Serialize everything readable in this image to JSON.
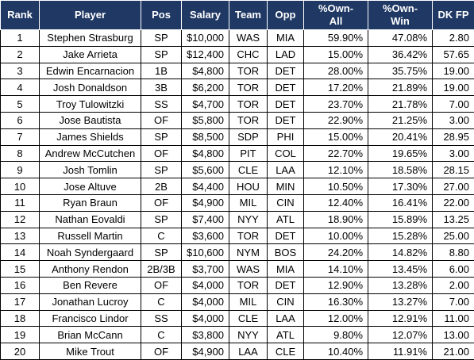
{
  "table": {
    "headers": [
      "Rank",
      "Player",
      "Pos",
      "Salary",
      "Team",
      "Opp",
      "%Own-\nAll",
      "%Own-\nWin",
      "DK FP"
    ],
    "rows": [
      [
        "1",
        "Stephen Strasburg",
        "SP",
        "$10,000",
        "WAS",
        "MIA",
        "59.90%",
        "47.08%",
        "2.80"
      ],
      [
        "2",
        "Jake Arrieta",
        "SP",
        "$12,400",
        "CHC",
        "LAD",
        "15.00%",
        "36.42%",
        "57.65"
      ],
      [
        "3",
        "Edwin Encarnacion",
        "1B",
        "$4,800",
        "TOR",
        "DET",
        "28.00%",
        "35.75%",
        "19.00"
      ],
      [
        "4",
        "Josh Donaldson",
        "3B",
        "$6,200",
        "TOR",
        "DET",
        "17.20%",
        "21.89%",
        "19.00"
      ],
      [
        "5",
        "Troy Tulowitzki",
        "SS",
        "$4,700",
        "TOR",
        "DET",
        "23.70%",
        "21.78%",
        "7.00"
      ],
      [
        "6",
        "Jose Bautista",
        "OF",
        "$5,800",
        "TOR",
        "DET",
        "22.90%",
        "21.25%",
        "3.00"
      ],
      [
        "7",
        "James Shields",
        "SP",
        "$8,500",
        "SDP",
        "PHI",
        "15.00%",
        "20.41%",
        "28.95"
      ],
      [
        "8",
        "Andrew McCutchen",
        "OF",
        "$4,800",
        "PIT",
        "COL",
        "22.70%",
        "19.65%",
        "3.00"
      ],
      [
        "9",
        "Josh Tomlin",
        "SP",
        "$5,600",
        "CLE",
        "LAA",
        "12.10%",
        "18.58%",
        "28.15"
      ],
      [
        "10",
        "Jose Altuve",
        "2B",
        "$4,400",
        "HOU",
        "MIN",
        "10.50%",
        "17.30%",
        "27.00"
      ],
      [
        "11",
        "Ryan Braun",
        "OF",
        "$4,900",
        "MIL",
        "CIN",
        "12.40%",
        "16.41%",
        "22.00"
      ],
      [
        "12",
        "Nathan Eovaldi",
        "SP",
        "$7,400",
        "NYY",
        "ATL",
        "18.90%",
        "15.89%",
        "13.25"
      ],
      [
        "13",
        "Russell Martin",
        "C",
        "$3,600",
        "TOR",
        "DET",
        "10.00%",
        "15.28%",
        "25.00"
      ],
      [
        "14",
        "Noah Syndergaard",
        "SP",
        "$10,600",
        "NYM",
        "BOS",
        "24.20%",
        "14.82%",
        "8.80"
      ],
      [
        "15",
        "Anthony Rendon",
        "2B/3B",
        "$3,700",
        "WAS",
        "MIA",
        "14.10%",
        "13.45%",
        "6.00"
      ],
      [
        "16",
        "Ben Revere",
        "OF",
        "$4,000",
        "TOR",
        "DET",
        "12.90%",
        "13.28%",
        "2.00"
      ],
      [
        "17",
        "Jonathan Lucroy",
        "C",
        "$4,000",
        "MIL",
        "CIN",
        "16.30%",
        "13.27%",
        "7.00"
      ],
      [
        "18",
        "Francisco Lindor",
        "SS",
        "$4,000",
        "CLE",
        "LAA",
        "12.00%",
        "12.91%",
        "11.00"
      ],
      [
        "19",
        "Brian McCann",
        "C",
        "$3,800",
        "NYY",
        "ATL",
        "9.80%",
        "12.07%",
        "13.00"
      ],
      [
        "20",
        "Mike Trout",
        "OF",
        "$4,900",
        "LAA",
        "CLE",
        "10.40%",
        "11.91%",
        "21.00"
      ]
    ]
  }
}
